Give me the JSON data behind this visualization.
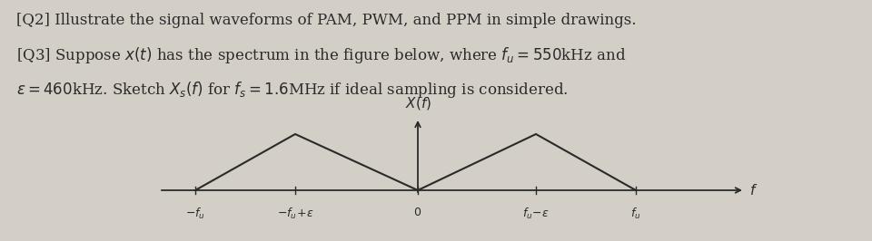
{
  "background_color": "#d3cfc7",
  "text_color": "#1a1a1a",
  "q2_text": "[Q2] Illustrate the signal waveforms of PAM, PWM, and PPM in simple drawings.",
  "q3_line1": "[Q3] Suppose $x(t)$ has the spectrum in the figure below, where $f_u = 550$kHz and",
  "q3_line2": "$\\varepsilon = 460$kHz. Sketch $X_s(f)$ for $f_s = 1.6$MHz if ideal sampling is considered.",
  "fu": 550,
  "eps": 460,
  "spectrum_color": "#2a2a2a",
  "fig_width": 9.6,
  "fig_height": 2.66,
  "dpi": 100
}
